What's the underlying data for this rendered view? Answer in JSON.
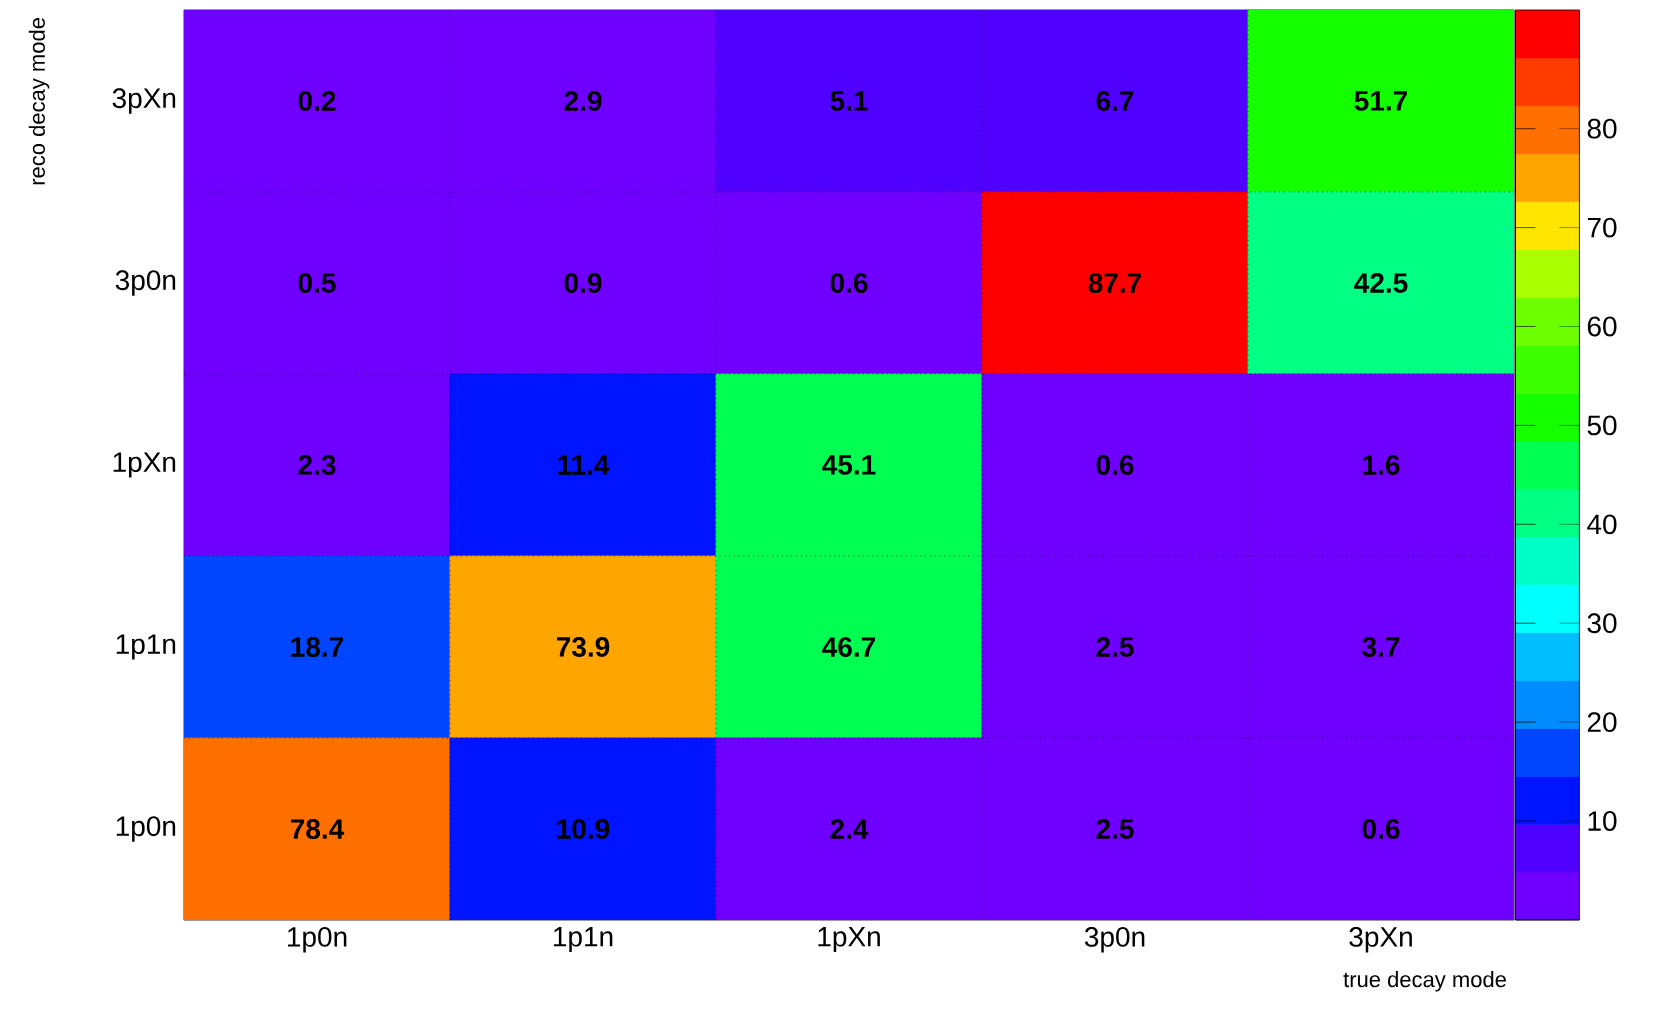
{
  "chart_data": {
    "type": "heatmap",
    "xlabel": "true decay mode",
    "ylabel": "reco decay mode",
    "categories": [
      "1p0n",
      "1p1n",
      "1pXn",
      "3p0n",
      "3pXn"
    ],
    "y_categories": [
      "3pXn",
      "3p0n",
      "1pXn",
      "1p1n",
      "1p0n"
    ],
    "cells": [
      [
        0.2,
        2.9,
        5.1,
        6.7,
        51.7
      ],
      [
        0.5,
        0.9,
        0.6,
        87.7,
        42.5
      ],
      [
        2.3,
        11.4,
        45.1,
        0.6,
        1.6
      ],
      [
        18.7,
        73.9,
        46.7,
        2.5,
        3.7
      ],
      [
        78.4,
        10.9,
        2.4,
        2.5,
        0.6
      ]
    ],
    "data_labels": true,
    "grid": true,
    "clim": [
      0,
      92
    ],
    "cticks": [
      10,
      20,
      30,
      40,
      50,
      60,
      70,
      80
    ]
  }
}
